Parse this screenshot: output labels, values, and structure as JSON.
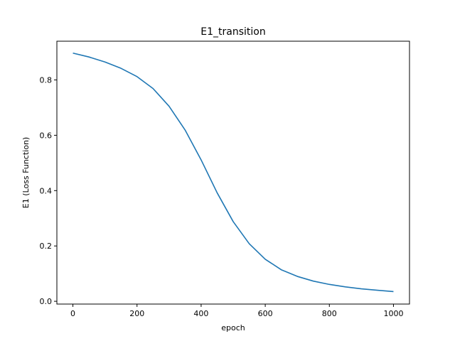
{
  "figure": {
    "background": "#ffffff"
  },
  "chart_data": {
    "type": "line",
    "title": "E1_transition",
    "xlabel": "epoch",
    "ylabel": "E1 (Loss Function)",
    "xlim": [
      -50,
      1050
    ],
    "ylim": [
      -0.01,
      0.94
    ],
    "xticks": [
      0,
      200,
      400,
      600,
      800,
      1000
    ],
    "xtick_labels": [
      "0",
      "200",
      "400",
      "600",
      "800",
      "1000"
    ],
    "yticks": [
      0.0,
      0.2,
      0.4,
      0.6,
      0.8
    ],
    "ytick_labels": [
      "0.0",
      "0.2",
      "0.4",
      "0.6",
      "0.8"
    ],
    "grid": false,
    "legend": "none",
    "series": [
      {
        "color": "#1f77b4",
        "x": [
          0,
          50,
          100,
          150,
          200,
          250,
          300,
          350,
          400,
          450,
          500,
          550,
          600,
          650,
          700,
          750,
          800,
          850,
          900,
          950,
          1000
        ],
        "y": [
          0.897,
          0.883,
          0.865,
          0.842,
          0.812,
          0.769,
          0.705,
          0.619,
          0.511,
          0.392,
          0.288,
          0.208,
          0.152,
          0.114,
          0.09,
          0.073,
          0.061,
          0.052,
          0.045,
          0.04,
          0.035
        ]
      }
    ]
  }
}
